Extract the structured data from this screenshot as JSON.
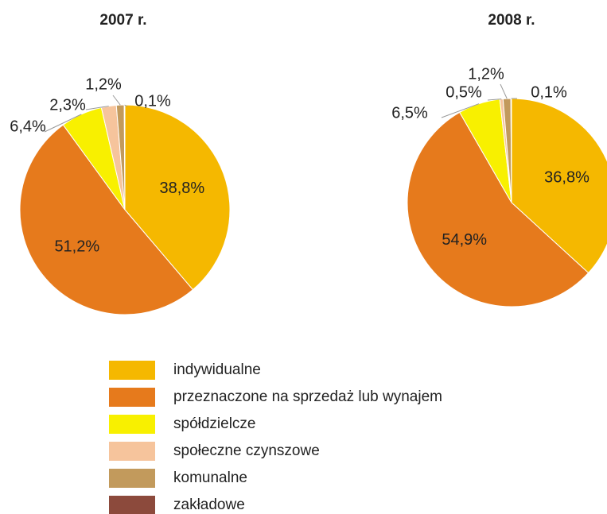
{
  "chart_data": [
    {
      "type": "pie",
      "title": "2007 r.",
      "values": [
        38.8,
        51.2,
        6.4,
        2.3,
        1.2,
        0.1
      ],
      "value_labels": [
        "38,8%",
        "51,2%",
        "6,4%",
        "2,3%",
        "1,2%",
        "0,1%"
      ]
    },
    {
      "type": "pie",
      "title": "2008 r.",
      "values": [
        36.8,
        54.9,
        6.5,
        0.5,
        1.2,
        0.1
      ],
      "value_labels": [
        "36,8%",
        "54,9%",
        "6,5%",
        "0,5%",
        "1,2%",
        "0,1%"
      ]
    }
  ],
  "legend": {
    "categories": [
      "indywidualne",
      "przeznaczone na sprzedaż lub wynajem",
      "spółdzielcze",
      "społeczne czynszowe",
      "komunalne",
      "zakładowe"
    ],
    "colors": [
      "#f5b800",
      "#e67a1c",
      "#f8f000",
      "#f6c49c",
      "#c29a5c",
      "#8c4a3c"
    ]
  }
}
